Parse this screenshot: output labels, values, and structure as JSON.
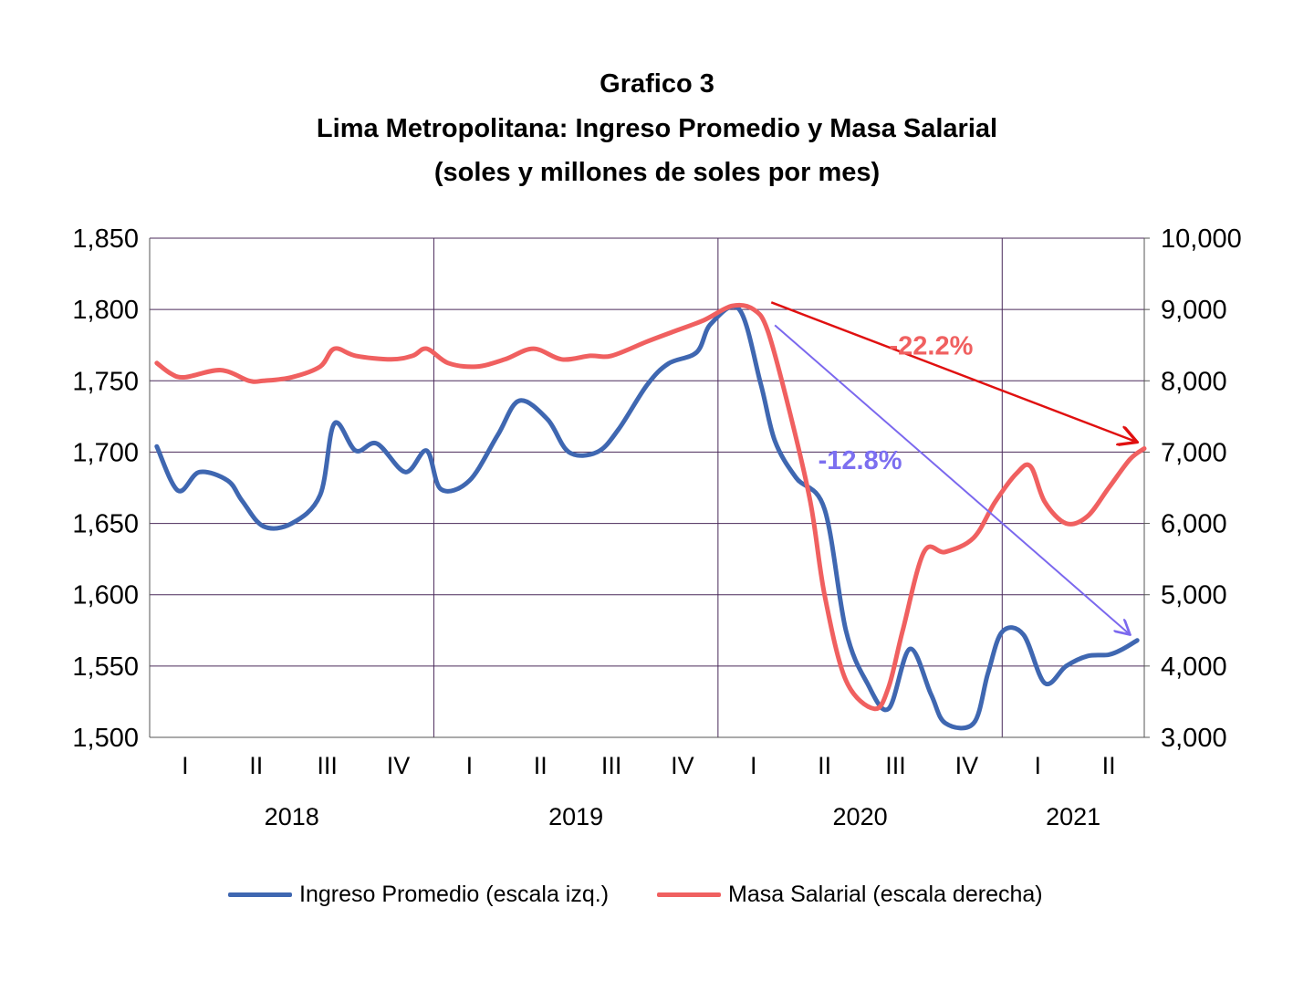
{
  "chart_data": {
    "type": "line",
    "title": "Grafico 3",
    "subtitle": "Lima Metropolitana: Ingreso Promedio y Masa Salarial",
    "subtitle2": "(soles y millones de soles por mes)",
    "quarter_labels": [
      "I",
      "II",
      "III",
      "IV",
      "I",
      "II",
      "III",
      "IV",
      "I",
      "II",
      "III",
      "IV",
      "I",
      "II"
    ],
    "year_labels": [
      {
        "label": "2018",
        "center_quarter": 2.5
      },
      {
        "label": "2019",
        "center_quarter": 6.5
      },
      {
        "label": "2020",
        "center_quarter": 10.5
      },
      {
        "label": "2021",
        "center_quarter": 13.5
      }
    ],
    "y_left": {
      "min": 1500,
      "max": 1850,
      "step": 50,
      "ticks": [
        "1,500",
        "1,550",
        "1,600",
        "1,650",
        "1,700",
        "1,750",
        "1,800",
        "1,850"
      ]
    },
    "y_right": {
      "min": 3000,
      "max": 10000,
      "step": 1000,
      "ticks": [
        "3,000",
        "4,000",
        "5,000",
        "6,000",
        "7,000",
        "8,000",
        "9,000",
        "10,000"
      ]
    },
    "series": [
      {
        "name": "Ingreso Promedio (escala izq.)",
        "axis": "left",
        "color": "#3f67b1",
        "x": [
          0.6,
          0.9,
          1.2,
          1.6,
          1.8,
          2.1,
          2.5,
          2.9,
          3.1,
          3.4,
          3.7,
          4.1,
          4.4,
          4.6,
          5.0,
          5.4,
          5.7,
          6.1,
          6.4,
          6.8,
          7.1,
          7.5,
          7.8,
          8.2,
          8.4,
          8.8,
          9.1,
          9.3,
          9.6,
          10.0,
          10.3,
          10.6,
          10.9,
          11.2,
          11.5,
          11.7,
          12.1,
          12.3,
          12.5,
          12.8,
          13.1,
          13.4,
          13.7,
          14.0,
          14.2,
          14.4
        ],
        "y": [
          1704,
          1673,
          1686,
          1680,
          1666,
          1648,
          1650,
          1670,
          1720,
          1701,
          1706,
          1686,
          1701,
          1674,
          1680,
          1712,
          1736,
          1723,
          1700,
          1700,
          1716,
          1747,
          1762,
          1770,
          1790,
          1800,
          1748,
          1708,
          1682,
          1660,
          1575,
          1538,
          1520,
          1562,
          1530,
          1510,
          1510,
          1545,
          1574,
          1572,
          1538,
          1550,
          1557,
          1558,
          1562,
          1568
        ]
      },
      {
        "name": "Masa Salarial (escala derecha)",
        "axis": "right",
        "color": "#f06060",
        "x": [
          0.6,
          0.8,
          1.0,
          1.5,
          1.9,
          2.1,
          2.5,
          2.9,
          3.1,
          3.4,
          3.9,
          4.2,
          4.4,
          4.7,
          5.1,
          5.5,
          5.9,
          6.3,
          6.7,
          7.0,
          7.5,
          7.9,
          8.3,
          8.7,
          9.0,
          9.2,
          9.5,
          9.8,
          10.0,
          10.3,
          10.7,
          10.9,
          11.1,
          11.4,
          11.7,
          12.1,
          12.4,
          12.7,
          12.9,
          13.1,
          13.4,
          13.7,
          14.0,
          14.3,
          14.5
        ],
        "y": [
          8250,
          8100,
          8050,
          8150,
          8000,
          8000,
          8050,
          8200,
          8450,
          8350,
          8300,
          8350,
          8450,
          8250,
          8200,
          8300,
          8450,
          8300,
          8350,
          8350,
          8550,
          8700,
          8850,
          9050,
          9000,
          8700,
          7600,
          6300,
          5000,
          3800,
          3400,
          3700,
          4500,
          5600,
          5600,
          5800,
          6300,
          6700,
          6800,
          6300,
          6000,
          6100,
          6500,
          6900,
          7050
        ]
      }
    ],
    "annotations": [
      {
        "text": "-22.2%",
        "color": "#f06060",
        "arrow_color": "#e01010",
        "from": {
          "x": 9.25,
          "y_right": 9100
        },
        "to": {
          "x": 14.4,
          "y_right": 7140
        },
        "label_at": {
          "x": 11.5,
          "y_right": 8370
        }
      },
      {
        "text": "-12.8%",
        "color": "#7c6ff0",
        "arrow_color": "#7b68ee",
        "from": {
          "x": 9.3,
          "y_left": 1789
        },
        "to": {
          "x": 14.3,
          "y_left": 1572
        },
        "label_at": {
          "x": 10.5,
          "y_left": 1688
        }
      }
    ],
    "legend": "bottom",
    "grid": true
  }
}
